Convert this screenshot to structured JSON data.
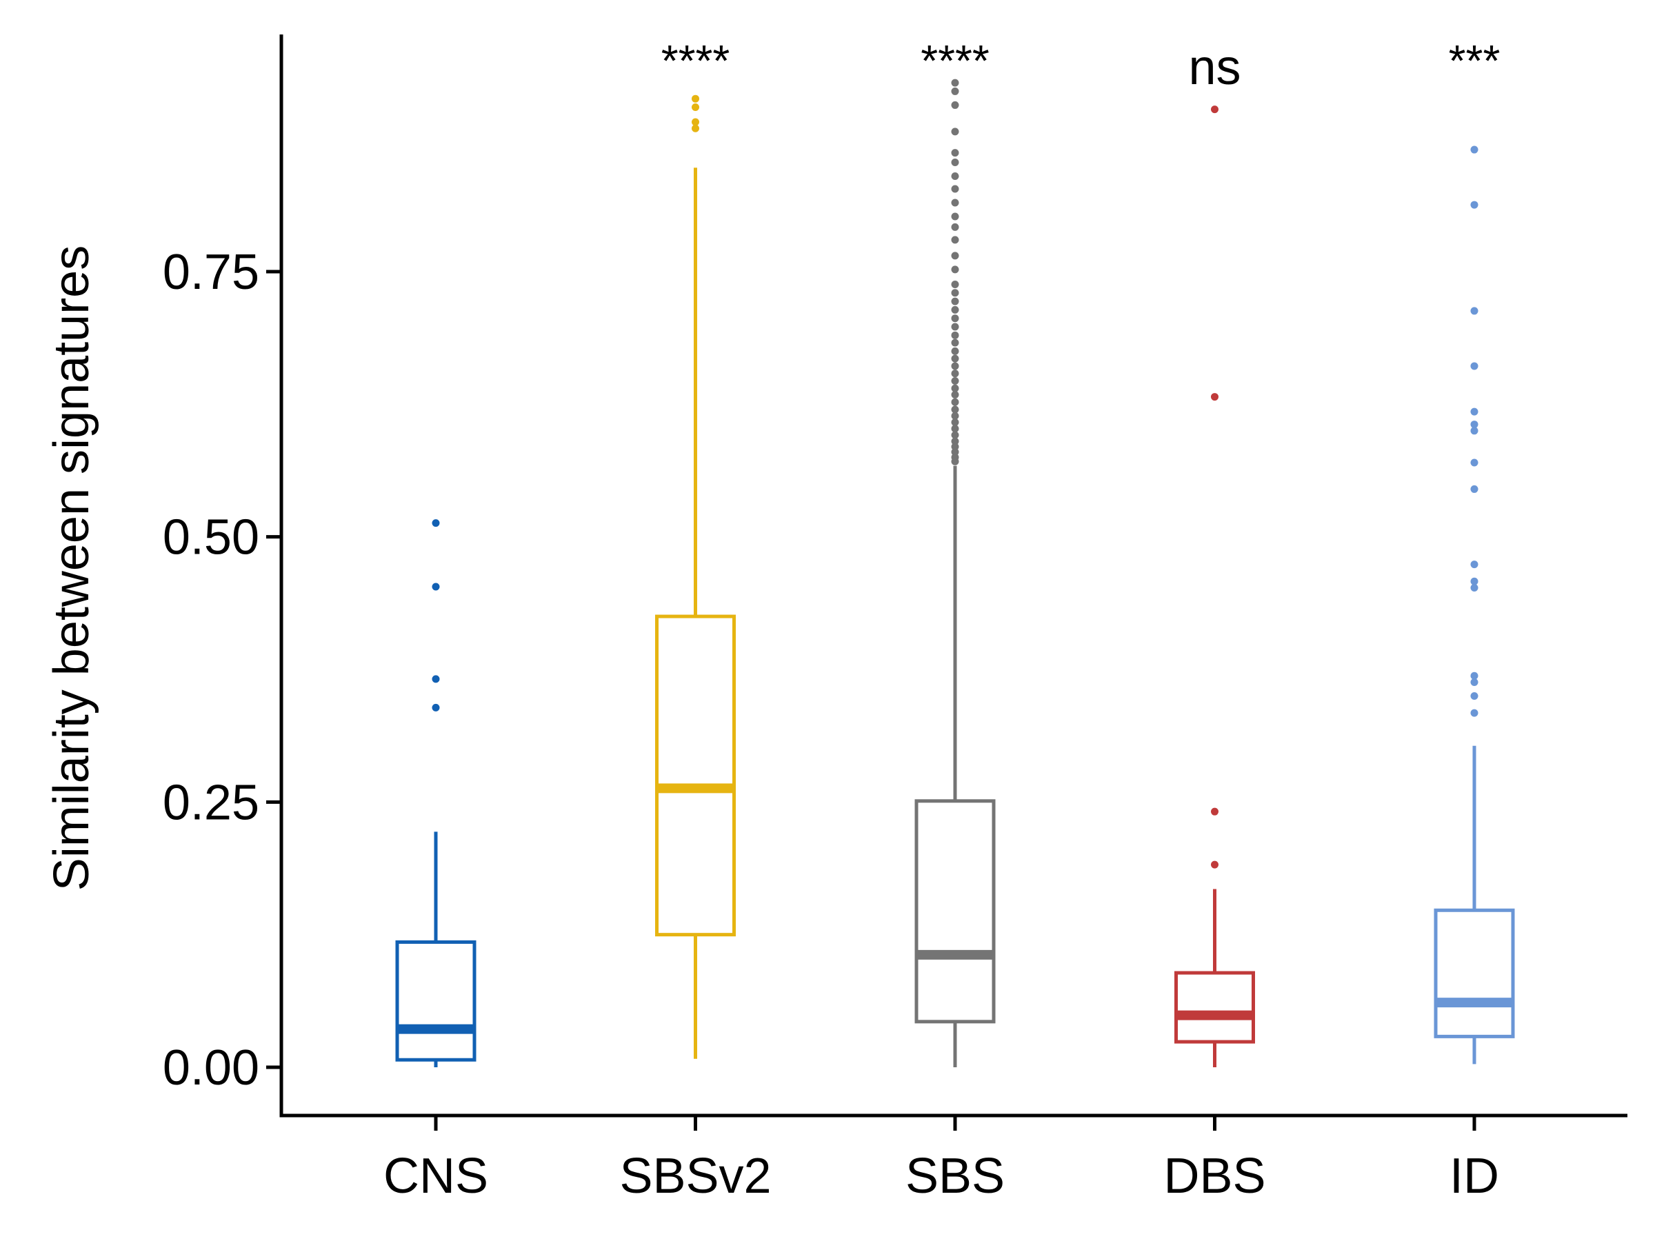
{
  "chart_data": {
    "type": "box",
    "ylabel": "Similarity between signatures",
    "ylim": [
      -0.045,
      0.97
    ],
    "yticks": [
      0.0,
      0.25,
      0.5,
      0.75
    ],
    "ytick_labels": [
      "0.00",
      "0.25",
      "0.50",
      "0.75"
    ],
    "categories": [
      "CNS",
      "SBSv2",
      "SBS",
      "DBS",
      "ID"
    ],
    "groups": [
      {
        "name": "CNS",
        "color": "#1160B3",
        "whisker_low": 0.0,
        "q1": 0.007,
        "median": 0.036,
        "q3": 0.118,
        "whisker_high": 0.222,
        "outliers": [
          0.339,
          0.366,
          0.453,
          0.513
        ],
        "significance": ""
      },
      {
        "name": "SBSv2",
        "color": "#E6B411",
        "whisker_low": 0.008,
        "q1": 0.125,
        "median": 0.263,
        "q3": 0.425,
        "whisker_high": 0.848,
        "outliers": [
          0.885,
          0.891,
          0.905,
          0.913
        ],
        "significance": "****"
      },
      {
        "name": "SBS",
        "color": "#747474",
        "whisker_low": 0.0,
        "q1": 0.043,
        "median": 0.106,
        "q3": 0.251,
        "whisker_high": 0.567,
        "outliers": [
          0.571,
          0.575,
          0.58,
          0.585,
          0.59,
          0.596,
          0.602,
          0.608,
          0.614,
          0.62,
          0.627,
          0.634,
          0.64,
          0.647,
          0.654,
          0.661,
          0.668,
          0.675,
          0.683,
          0.69,
          0.698,
          0.706,
          0.714,
          0.722,
          0.73,
          0.738,
          0.752,
          0.765,
          0.78,
          0.792,
          0.802,
          0.815,
          0.828,
          0.84,
          0.853,
          0.862,
          0.882,
          0.907,
          0.92,
          0.928
        ],
        "significance": "****"
      },
      {
        "name": "DBS",
        "color": "#C03A3A",
        "whisker_low": 0.0,
        "q1": 0.024,
        "median": 0.049,
        "q3": 0.089,
        "whisker_high": 0.168,
        "outliers": [
          0.191,
          0.241,
          0.632,
          0.903
        ],
        "significance": "ns"
      },
      {
        "name": "ID",
        "color": "#6A96D6",
        "whisker_low": 0.003,
        "q1": 0.029,
        "median": 0.061,
        "q3": 0.148,
        "whisker_high": 0.303,
        "outliers": [
          0.334,
          0.35,
          0.363,
          0.369,
          0.452,
          0.458,
          0.474,
          0.545,
          0.57,
          0.6,
          0.606,
          0.618,
          0.661,
          0.713,
          0.813,
          0.865
        ],
        "significance": "***"
      }
    ],
    "grid": false,
    "legend": "none"
  }
}
